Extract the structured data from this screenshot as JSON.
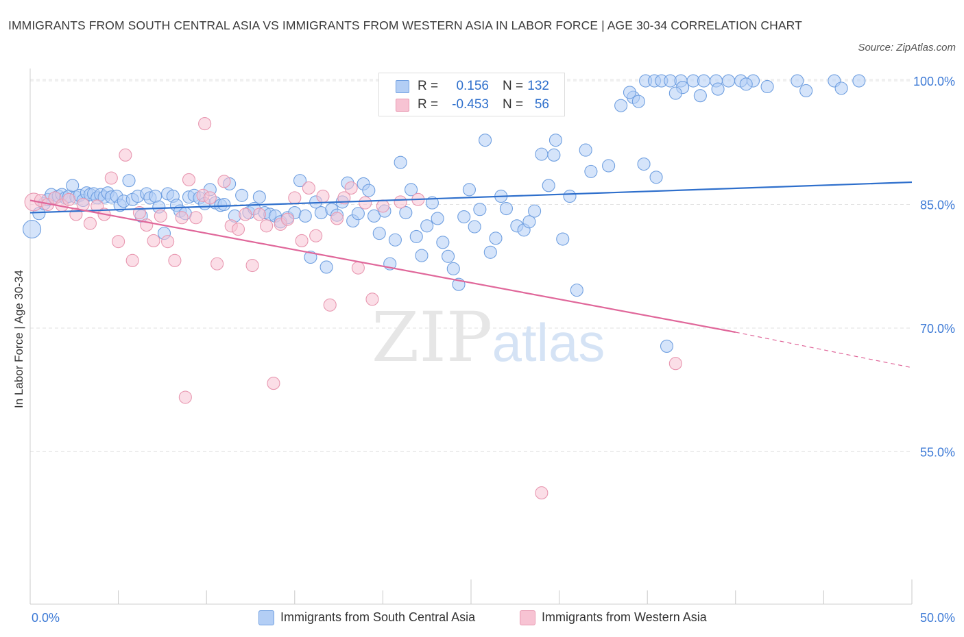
{
  "title": "IMMIGRANTS FROM SOUTH CENTRAL ASIA VS IMMIGRANTS FROM WESTERN ASIA IN LABOR FORCE | AGE 30-34 CORRELATION CHART",
  "source": "Source: ZipAtlas.com",
  "watermark": {
    "zip": "ZIP",
    "atlas": "atlas"
  },
  "colors": {
    "blue_fill": "#b3cef5",
    "blue_stroke": "#6f9fe0",
    "blue_line": "#2e6fcc",
    "pink_fill": "#f7c3d3",
    "pink_stroke": "#e897b0",
    "pink_line": "#e0679a",
    "blue_text": "#3d7ad6",
    "grid": "#e2e2e2"
  },
  "legend": {
    "rows": [
      {
        "r_label": "R =",
        "r_value": "0.156",
        "n_label": "N =",
        "n_value": "132",
        "color": "blue"
      },
      {
        "r_label": "R =",
        "r_value": "-0.453",
        "n_label": "N =",
        "n_value": "56",
        "color": "pink"
      }
    ]
  },
  "bottom_legend": [
    {
      "label": "Immigrants from South Central Asia",
      "color": "blue"
    },
    {
      "label": "Immigrants from Western Asia",
      "color": "pink"
    }
  ],
  "chart_data": {
    "type": "scatter",
    "xlabel": "",
    "ylabel": "In Labor Force | Age 30-34",
    "xlim": [
      0,
      50
    ],
    "ylim": [
      36.5,
      101.5
    ],
    "x_tick_labels": [
      "0.0%",
      "50.0%"
    ],
    "y_ticks": [
      55,
      70,
      85,
      100
    ],
    "y_tick_labels": [
      "55.0%",
      "70.0%",
      "85.0%",
      "100.0%"
    ],
    "grid": true,
    "legend_position": "top-center",
    "series": [
      {
        "name": "Immigrants from South Central Asia",
        "color": "blue",
        "trend": {
          "x": [
            0,
            50
          ],
          "y": [
            84.0,
            87.7
          ]
        },
        "points": [
          [
            0.1,
            82.0
          ],
          [
            0.5,
            83.9
          ],
          [
            0.8,
            85.1
          ],
          [
            1.0,
            85.6
          ],
          [
            1.2,
            86.2
          ],
          [
            1.4,
            85.8
          ],
          [
            1.6,
            86.0
          ],
          [
            1.8,
            86.2
          ],
          [
            2.0,
            85.8
          ],
          [
            2.2,
            86.0
          ],
          [
            2.4,
            87.3
          ],
          [
            2.6,
            85.9
          ],
          [
            2.8,
            86.1
          ],
          [
            3.0,
            85.5
          ],
          [
            3.2,
            86.4
          ],
          [
            3.4,
            86.2
          ],
          [
            3.6,
            86.3
          ],
          [
            3.8,
            85.8
          ],
          [
            4.0,
            86.2
          ],
          [
            4.2,
            85.9
          ],
          [
            4.4,
            86.4
          ],
          [
            4.6,
            85.9
          ],
          [
            4.9,
            86.0
          ],
          [
            5.1,
            84.9
          ],
          [
            5.3,
            85.4
          ],
          [
            5.6,
            87.9
          ],
          [
            5.8,
            85.6
          ],
          [
            6.1,
            86.0
          ],
          [
            6.3,
            83.6
          ],
          [
            6.6,
            86.3
          ],
          [
            6.8,
            85.8
          ],
          [
            7.1,
            86.0
          ],
          [
            7.3,
            84.7
          ],
          [
            7.6,
            81.5
          ],
          [
            7.8,
            86.3
          ],
          [
            8.1,
            86.0
          ],
          [
            8.3,
            84.9
          ],
          [
            8.5,
            84.2
          ],
          [
            8.8,
            83.9
          ],
          [
            9.0,
            85.9
          ],
          [
            9.3,
            86.1
          ],
          [
            9.6,
            85.8
          ],
          [
            9.9,
            85.1
          ],
          [
            10.2,
            86.8
          ],
          [
            10.5,
            85.2
          ],
          [
            10.8,
            84.9
          ],
          [
            11.0,
            85.0
          ],
          [
            11.3,
            87.5
          ],
          [
            11.6,
            83.6
          ],
          [
            12.0,
            86.1
          ],
          [
            12.4,
            84.0
          ],
          [
            12.7,
            84.5
          ],
          [
            13.0,
            85.9
          ],
          [
            13.3,
            84.0
          ],
          [
            13.6,
            83.8
          ],
          [
            13.9,
            83.6
          ],
          [
            14.2,
            82.9
          ],
          [
            14.6,
            83.4
          ],
          [
            15.0,
            84.0
          ],
          [
            15.3,
            87.9
          ],
          [
            15.6,
            83.6
          ],
          [
            15.9,
            78.6
          ],
          [
            16.2,
            85.3
          ],
          [
            16.5,
            84.0
          ],
          [
            16.8,
            77.4
          ],
          [
            17.1,
            84.4
          ],
          [
            17.4,
            83.7
          ],
          [
            17.7,
            85.3
          ],
          [
            18.0,
            87.6
          ],
          [
            18.3,
            83.0
          ],
          [
            18.6,
            83.9
          ],
          [
            18.9,
            87.5
          ],
          [
            19.2,
            86.7
          ],
          [
            19.5,
            83.6
          ],
          [
            19.8,
            81.5
          ],
          [
            20.1,
            84.2
          ],
          [
            20.4,
            77.8
          ],
          [
            20.7,
            80.7
          ],
          [
            21.0,
            90.1
          ],
          [
            21.3,
            84.0
          ],
          [
            21.6,
            86.8
          ],
          [
            21.9,
            81.1
          ],
          [
            22.2,
            78.8
          ],
          [
            22.5,
            82.4
          ],
          [
            22.8,
            85.2
          ],
          [
            23.1,
            83.3
          ],
          [
            23.4,
            80.4
          ],
          [
            23.7,
            78.7
          ],
          [
            24.0,
            77.2
          ],
          [
            24.3,
            75.3
          ],
          [
            24.6,
            83.5
          ],
          [
            24.9,
            86.8
          ],
          [
            25.2,
            82.3
          ],
          [
            25.5,
            84.4
          ],
          [
            25.8,
            92.8
          ],
          [
            26.1,
            79.2
          ],
          [
            26.4,
            80.9
          ],
          [
            26.7,
            86.0
          ],
          [
            27.0,
            84.5
          ],
          [
            27.6,
            82.4
          ],
          [
            28.0,
            81.9
          ],
          [
            28.3,
            82.9
          ],
          [
            28.6,
            84.2
          ],
          [
            29.0,
            91.1
          ],
          [
            29.4,
            87.3
          ],
          [
            29.8,
            92.8
          ],
          [
            29.7,
            91.0
          ],
          [
            30.2,
            80.8
          ],
          [
            30.6,
            86.0
          ],
          [
            31.0,
            74.6
          ],
          [
            31.5,
            91.6
          ],
          [
            31.8,
            89.0
          ],
          [
            32.8,
            89.7
          ],
          [
            34.2,
            98.0
          ],
          [
            34.8,
            89.9
          ],
          [
            35.5,
            88.3
          ],
          [
            36.1,
            67.8
          ],
          [
            34.0,
            98.6
          ],
          [
            34.9,
            100.0
          ],
          [
            35.4,
            100.0
          ],
          [
            35.8,
            100.0
          ],
          [
            36.3,
            100.0
          ],
          [
            36.9,
            100.0
          ],
          [
            37.6,
            100.0
          ],
          [
            38.2,
            100.0
          ],
          [
            38.9,
            100.0
          ],
          [
            39.6,
            100.0
          ],
          [
            40.3,
            100.0
          ],
          [
            41.0,
            100.0
          ],
          [
            43.5,
            100.0
          ],
          [
            45.6,
            100.0
          ],
          [
            47.0,
            100.0
          ],
          [
            34.5,
            97.5
          ],
          [
            37.0,
            99.2
          ],
          [
            38.0,
            98.2
          ],
          [
            39.0,
            99.0
          ],
          [
            40.6,
            99.6
          ],
          [
            41.8,
            99.3
          ],
          [
            44.0,
            98.8
          ],
          [
            46.0,
            99.1
          ],
          [
            33.5,
            97.0
          ],
          [
            36.6,
            98.5
          ]
        ]
      },
      {
        "name": "Immigrants from Western Asia",
        "color": "pink",
        "trend": {
          "x": [
            0,
            40
          ],
          "y": [
            85.5,
            69.5
          ]
        },
        "trend_dashed": {
          "x": [
            40,
            50
          ],
          "y": [
            69.5,
            65.2
          ]
        },
        "points": [
          [
            0.2,
            85.3
          ],
          [
            0.6,
            85.5
          ],
          [
            1.0,
            85.0
          ],
          [
            1.4,
            85.8
          ],
          [
            1.8,
            84.9
          ],
          [
            2.2,
            85.6
          ],
          [
            2.6,
            83.8
          ],
          [
            3.0,
            85.0
          ],
          [
            3.4,
            82.7
          ],
          [
            3.8,
            84.8
          ],
          [
            4.2,
            83.8
          ],
          [
            4.6,
            88.2
          ],
          [
            5.0,
            80.5
          ],
          [
            5.4,
            91.0
          ],
          [
            5.8,
            78.2
          ],
          [
            6.2,
            84.0
          ],
          [
            6.6,
            82.5
          ],
          [
            7.0,
            80.6
          ],
          [
            7.4,
            83.6
          ],
          [
            7.8,
            80.5
          ],
          [
            8.2,
            78.2
          ],
          [
            8.6,
            83.4
          ],
          [
            9.0,
            88.0
          ],
          [
            9.4,
            83.4
          ],
          [
            9.8,
            86.1
          ],
          [
            10.2,
            85.8
          ],
          [
            10.6,
            77.8
          ],
          [
            11.0,
            87.8
          ],
          [
            11.4,
            82.4
          ],
          [
            11.8,
            82.0
          ],
          [
            12.2,
            83.8
          ],
          [
            12.6,
            77.6
          ],
          [
            13.0,
            83.8
          ],
          [
            13.4,
            82.4
          ],
          [
            13.8,
            63.3
          ],
          [
            14.2,
            82.6
          ],
          [
            14.6,
            83.2
          ],
          [
            15.0,
            85.8
          ],
          [
            15.4,
            80.6
          ],
          [
            15.8,
            87.0
          ],
          [
            16.2,
            81.2
          ],
          [
            16.6,
            86.0
          ],
          [
            17.0,
            72.8
          ],
          [
            17.4,
            83.3
          ],
          [
            17.8,
            85.8
          ],
          [
            18.2,
            87.0
          ],
          [
            18.6,
            77.3
          ],
          [
            19.0,
            85.2
          ],
          [
            19.4,
            73.5
          ],
          [
            20.0,
            84.8
          ],
          [
            21.0,
            85.3
          ],
          [
            22.0,
            85.6
          ],
          [
            36.6,
            65.7
          ],
          [
            29.0,
            50.0
          ],
          [
            8.8,
            61.6
          ],
          [
            9.9,
            94.8
          ]
        ]
      }
    ]
  }
}
